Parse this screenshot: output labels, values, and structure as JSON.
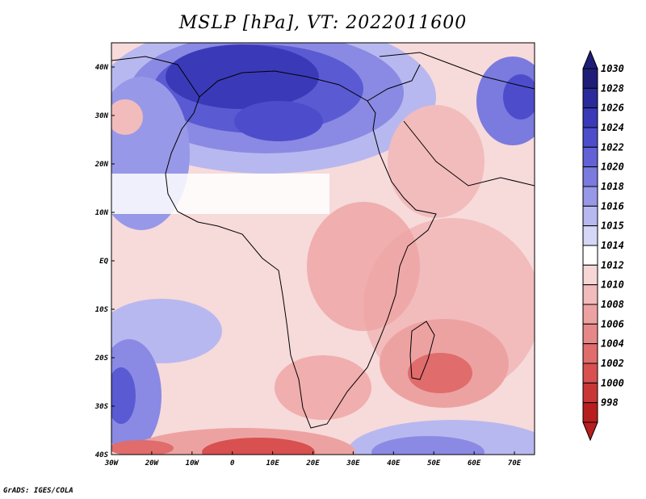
{
  "title": "MSLP [hPa], VT: 2022011600",
  "credit": "GrADS: IGES/COLA",
  "map": {
    "field": "MSLP",
    "units": "hPa",
    "valid_time": "2022011600",
    "lon_range": [
      -30,
      75
    ],
    "lat_range": [
      -40,
      45
    ],
    "lon_ticks": [
      "30W",
      "20W",
      "10W",
      "0",
      "10E",
      "20E",
      "30E",
      "40E",
      "50E",
      "60E",
      "70E"
    ],
    "lon_values": [
      -30,
      -20,
      -10,
      0,
      10,
      20,
      30,
      40,
      50,
      60,
      70
    ],
    "lat_ticks": [
      "40N",
      "30N",
      "20N",
      "10N",
      "EQ",
      "10S",
      "20S",
      "30S",
      "40S"
    ],
    "lat_values": [
      40,
      30,
      20,
      10,
      0,
      -10,
      -20,
      -30,
      -40
    ]
  },
  "colorbar": {
    "levels": [
      "1030",
      "1028",
      "1026",
      "1024",
      "1022",
      "1020",
      "1018",
      "1016",
      "1015",
      "1014",
      "1012",
      "1010",
      "1008",
      "1006",
      "1004",
      "1002",
      "1000",
      "998"
    ],
    "colors": [
      "#1e1e78",
      "#2a2a9a",
      "#3a3ab8",
      "#4d4dcc",
      "#6262d6",
      "#7a7adf",
      "#9898e8",
      "#b8b8f0",
      "#d6d6f7",
      "#ffffff",
      "#f7d6d6",
      "#f2bcbc",
      "#eda2a2",
      "#e78888",
      "#e06c6c",
      "#d85050",
      "#c93636",
      "#b81e1e"
    ]
  }
}
